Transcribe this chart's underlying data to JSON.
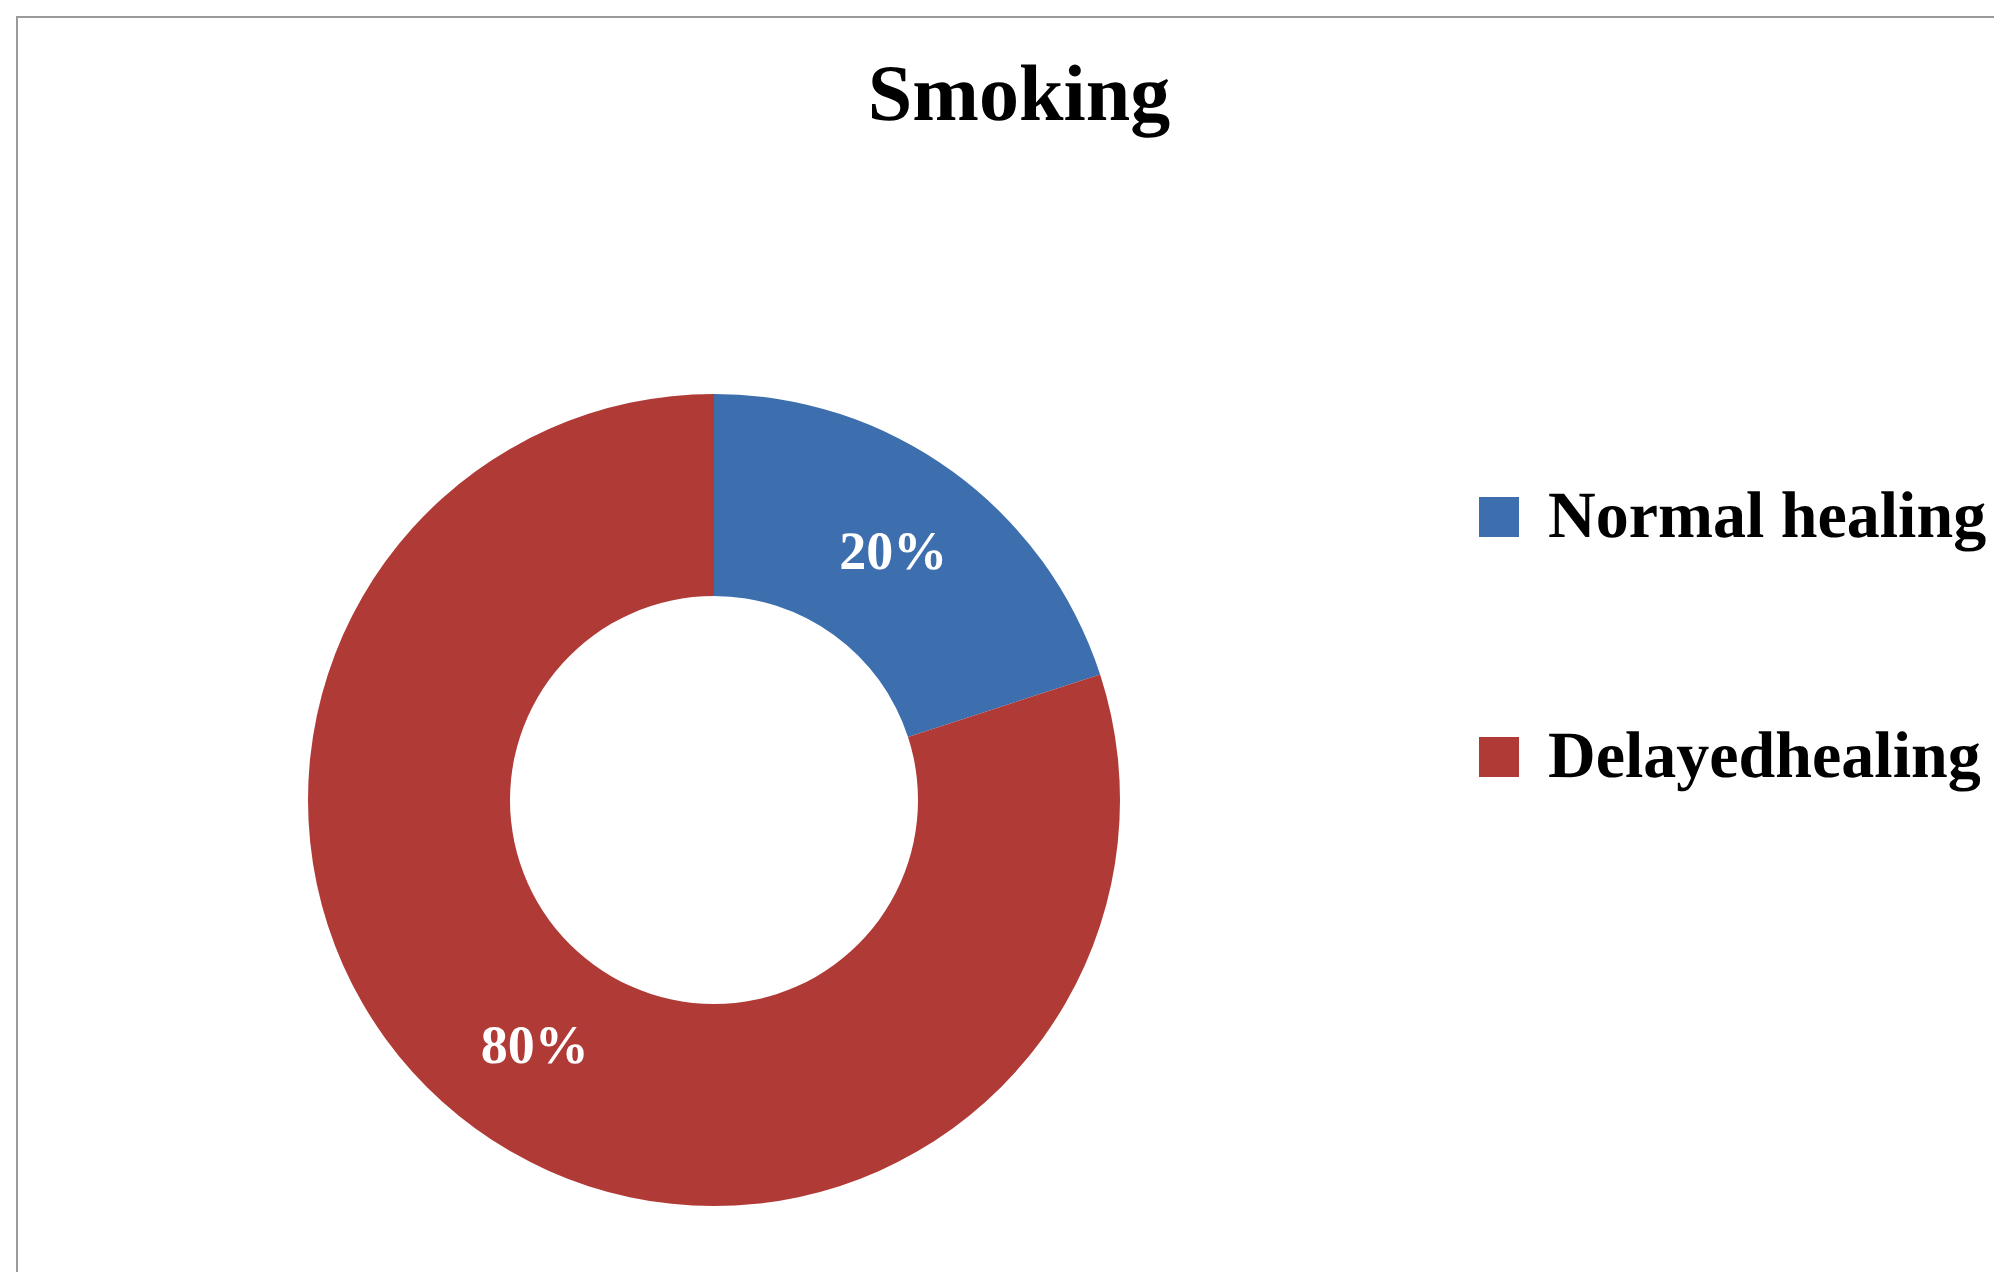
{
  "chart_data": {
    "type": "donut",
    "title": "Smoking",
    "categories": [
      "Normal healing",
      "Delayedhealing"
    ],
    "values": [
      20,
      80
    ],
    "colors": [
      "#3d6fae",
      "#b03a36"
    ],
    "value_labels": [
      "20%",
      "80%"
    ],
    "legend": "right"
  }
}
